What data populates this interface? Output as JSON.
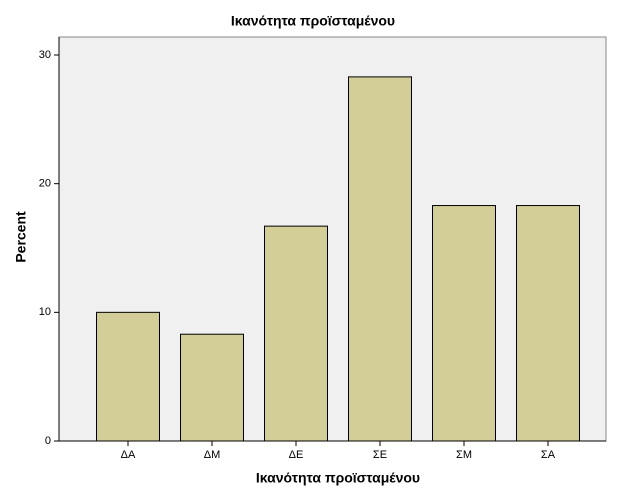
{
  "chart_data": {
    "type": "bar",
    "title": "Ικανότητα προϊσταμένου",
    "x_label": "Ικανότητα προϊσταμένου",
    "y_label": "Percent",
    "categories": [
      "ΔΑ",
      "ΔΜ",
      "ΔΕ",
      "ΣΕ",
      "ΣΜ",
      "ΣΑ"
    ],
    "values": [
      10.0,
      8.3,
      16.7,
      28.3,
      18.3,
      18.3
    ],
    "color": "#d3ce97",
    "ylim": [
      0,
      31.4
    ],
    "yticks": [
      0,
      10,
      20,
      30
    ],
    "grid": false
  }
}
